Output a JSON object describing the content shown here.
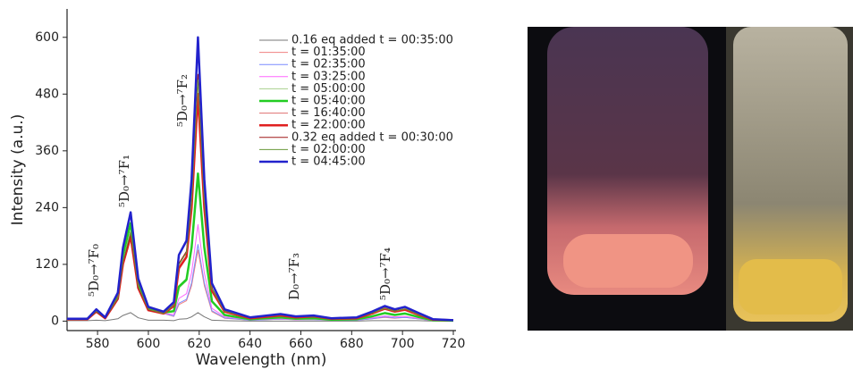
{
  "chart_data": {
    "type": "line",
    "xlabel": "Wavelength (nm)",
    "ylabel": "Intensity (a.u.)",
    "xlim": [
      568,
      720
    ],
    "ylim": [
      -20,
      660
    ],
    "xticks": [
      580,
      600,
      620,
      640,
      660,
      680,
      700,
      720
    ],
    "yticks": [
      0,
      120,
      240,
      360,
      480,
      600
    ],
    "grid": false,
    "legend": "upper right",
    "annotations": [
      "⁵D₀→⁷F₀",
      "⁵D₀→⁷F₁",
      "⁵D₀→⁷F₂",
      "D₀→⁷F₃",
      "⁵D₀→⁷F₄"
    ],
    "x": [
      568,
      576,
      579.5,
      583,
      588,
      590,
      593,
      596,
      600,
      606,
      610,
      612,
      615,
      617,
      619.5,
      622,
      625,
      630,
      640,
      652,
      658,
      665,
      672,
      682,
      688,
      693,
      697,
      701,
      706,
      712,
      720
    ],
    "series": [
      {
        "name": "0.16 eq added t = 00:35:00",
        "color": "#777777",
        "line_width": 1,
        "values": [
          1,
          1,
          2,
          1,
          5,
          12,
          18,
          7,
          2,
          2,
          1,
          4,
          5,
          9,
          18,
          9,
          2,
          1,
          0,
          0,
          0,
          0,
          0,
          0,
          1,
          1,
          1,
          1,
          1,
          0,
          0
        ]
      },
      {
        "name": "t = 01:35:00",
        "color": "#f08080",
        "line_width": 1,
        "values": [
          4,
          4,
          20,
          6,
          47,
          121,
          179,
          70,
          23,
          16,
          10,
          35,
          43,
          75,
          150,
          75,
          20,
          6,
          2,
          4,
          3,
          3,
          2,
          2,
          5,
          8,
          6,
          8,
          5,
          1,
          1
        ]
      },
      {
        "name": "t = 02:35:00",
        "color": "#7a8cff",
        "line_width": 1,
        "values": [
          4,
          4,
          20,
          6,
          48,
          124,
          184,
          72,
          24,
          16,
          11,
          38,
          46,
          81,
          162,
          81,
          22,
          7,
          2,
          4,
          3,
          3,
          2,
          2,
          5,
          9,
          7,
          8,
          5,
          1,
          1
        ]
      },
      {
        "name": "t = 03:25:00",
        "color": "#ff66ff",
        "line_width": 1,
        "values": [
          4,
          4,
          21,
          7,
          49,
          127,
          189,
          74,
          25,
          16,
          14,
          48,
          58,
          102,
          204,
          102,
          27,
          9,
          3,
          5,
          3,
          4,
          2,
          3,
          7,
          11,
          9,
          10,
          6,
          1,
          1
        ]
      },
      {
        "name": "t = 05:00:00",
        "color": "#a8d08d",
        "line_width": 1,
        "values": [
          4,
          4,
          22,
          7,
          52,
          135,
          200,
          78,
          26,
          17,
          20,
          70,
          85,
          150,
          300,
          150,
          40,
          13,
          4,
          8,
          5,
          6,
          3,
          4,
          10,
          16,
          13,
          15,
          9,
          2,
          1
        ]
      },
      {
        "name": "t = 05:40:00",
        "color": "#22cc22",
        "line_width": 2.5,
        "values": [
          5,
          5,
          23,
          7,
          54,
          140,
          207,
          81,
          27,
          18,
          21,
          73,
          88,
          156,
          312,
          156,
          42,
          13,
          4,
          8,
          5,
          6,
          3,
          4,
          10,
          17,
          13,
          16,
          9,
          2,
          1
        ]
      },
      {
        "name": "t = 16:40:00",
        "color": "#e07070",
        "line_width": 1,
        "values": [
          4,
          4,
          19,
          6,
          45,
          116,
          173,
          68,
          23,
          15,
          31,
          109,
          133,
          234,
          468,
          234,
          62,
          20,
          6,
          12,
          8,
          9,
          5,
          6,
          16,
          25,
          20,
          23,
          14,
          3,
          2
        ]
      },
      {
        "name": "t = 22:00:00",
        "color": "#e02020",
        "line_width": 2.5,
        "values": [
          4,
          4,
          20,
          6,
          47,
          121,
          179,
          70,
          23,
          16,
          32,
          112,
          136,
          240,
          480,
          240,
          64,
          20,
          6,
          12,
          8,
          10,
          5,
          6,
          16,
          26,
          20,
          24,
          14,
          3,
          2
        ]
      },
      {
        "name": "0.32 eq added t = 00:30:00",
        "color": "#a01818",
        "line_width": 1,
        "values": [
          4,
          4,
          20,
          6,
          48,
          124,
          184,
          72,
          24,
          16,
          35,
          122,
          148,
          261,
          522,
          261,
          70,
          22,
          7,
          13,
          9,
          10,
          5,
          7,
          17,
          28,
          22,
          26,
          16,
          3,
          2
        ]
      },
      {
        "name": "t = 02:00:00",
        "color": "#6a9a3a",
        "line_width": 1,
        "values": [
          4,
          4,
          21,
          7,
          49,
          127,
          189,
          74,
          25,
          16,
          34,
          119,
          145,
          255,
          510,
          255,
          68,
          21,
          7,
          13,
          9,
          10,
          5,
          7,
          17,
          27,
          21,
          26,
          15,
          3,
          2
        ]
      },
      {
        "name": "t = 04:45:00",
        "color": "#2222cc",
        "line_width": 2.5,
        "values": [
          5,
          5,
          25,
          8,
          60,
          155,
          230,
          90,
          30,
          20,
          40,
          140,
          170,
          300,
          600,
          300,
          80,
          25,
          8,
          15,
          10,
          12,
          6,
          8,
          20,
          32,
          25,
          30,
          18,
          4,
          2
        ]
      }
    ]
  }
}
